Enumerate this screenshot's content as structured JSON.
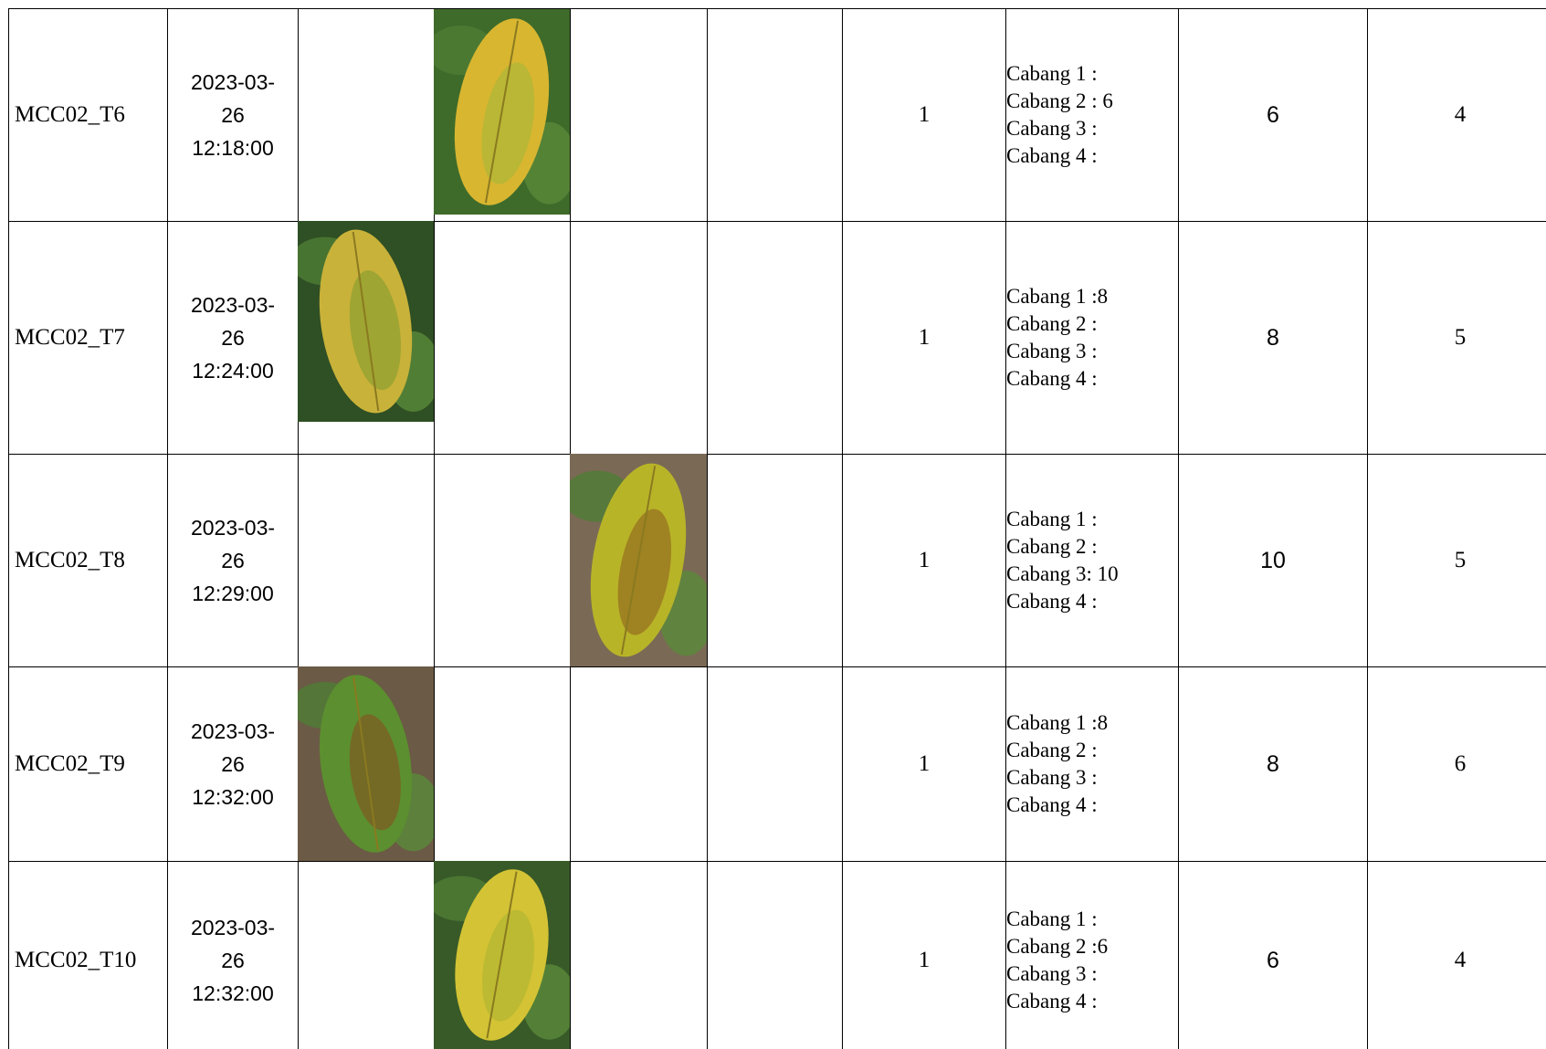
{
  "table": {
    "rows": [
      {
        "id": "MCC02_T6",
        "date": [
          "2023-03-",
          "26",
          "12:18:00"
        ],
        "count": 1,
        "cabang": [
          "Cabang 1 :",
          "Cabang 2 : 6",
          "Cabang 3 :",
          "Cabang 4 :"
        ],
        "total": 6,
        "score": 4
      },
      {
        "id": "MCC02_T7",
        "date": [
          "2023-03-",
          "26",
          "12:24:00"
        ],
        "count": 1,
        "cabang": [
          "Cabang 1 :8",
          "Cabang 2 :",
          "Cabang 3 :",
          "Cabang 4 :"
        ],
        "total": 8,
        "score": 5
      },
      {
        "id": "MCC02_T8",
        "date": [
          "2023-03-",
          "26",
          "12:29:00"
        ],
        "count": 1,
        "cabang": [
          "Cabang 1 :",
          "Cabang 2 :",
          "Cabang 3: 10",
          "Cabang 4 :"
        ],
        "total": 10,
        "score": 5
      },
      {
        "id": "MCC02_T9",
        "date": [
          "2023-03-",
          "26",
          "12:32:00"
        ],
        "count": 1,
        "cabang": [
          "Cabang 1 :8",
          "Cabang 2 :",
          "Cabang 3 :",
          "Cabang 4 :"
        ],
        "total": 8,
        "score": 6
      },
      {
        "id": "MCC02_T10",
        "date": [
          "2023-03-",
          "26",
          "12:32:00"
        ],
        "count": 1,
        "cabang": [
          "Cabang 1 :",
          "Cabang 2 :6",
          "Cabang 3 :",
          "Cabang 4 :"
        ],
        "total": 6,
        "score": 4
      }
    ]
  }
}
